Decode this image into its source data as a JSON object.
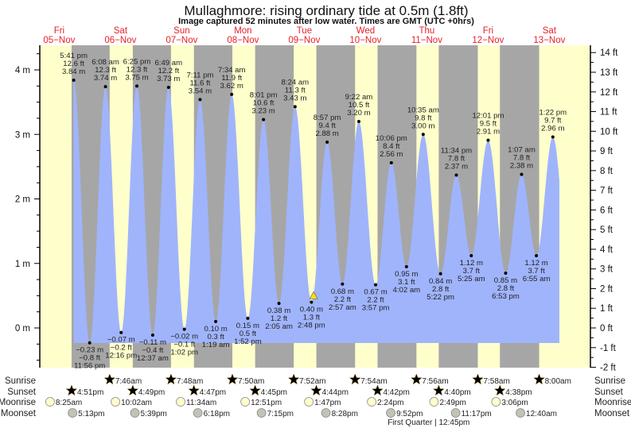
{
  "chart_data": {
    "type": "area",
    "title": "Mullaghmore: rising  ordinary tide at 0.5m (1.8ft)",
    "subtitle": "Image captured 52 minutes after low water. Times are GMT (UTC +0hrs)",
    "ylabel_left_unit": "m",
    "ylabel_right_unit": "ft",
    "ylim_m": [
      -0.615,
      4.38
    ],
    "left_ticks": [
      "0 m",
      "1 m",
      "2 m",
      "3 m",
      "4 m"
    ],
    "right_ticks": [
      "-2 ft",
      "-1 ft",
      "0 ft",
      "1 ft",
      "2 ft",
      "3 ft",
      "4 ft",
      "5 ft",
      "6 ft",
      "7 ft",
      "8 ft",
      "9 ft",
      "10 ft",
      "11 ft",
      "12 ft",
      "13 ft",
      "14 ft"
    ],
    "days": [
      {
        "dow": "Fri",
        "date": "05−Nov"
      },
      {
        "dow": "Sat",
        "date": "06−Nov"
      },
      {
        "dow": "Sun",
        "date": "07−Nov"
      },
      {
        "dow": "Mon",
        "date": "08−Nov"
      },
      {
        "dow": "Tue",
        "date": "09−Nov"
      },
      {
        "dow": "Wed",
        "date": "10−Nov"
      },
      {
        "dow": "Thu",
        "date": "11−Nov"
      },
      {
        "dow": "Fri",
        "date": "12−Nov"
      },
      {
        "dow": "Sat",
        "date": "13−Nov"
      }
    ],
    "current": {
      "hours_from_start": 111.67,
      "height_m": 0.5
    },
    "extremes": [
      {
        "t": 17.68,
        "type": "high",
        "time": "5:41 pm",
        "ft": "12.6 ft",
        "m": "3.84 m",
        "val": 3.84
      },
      {
        "t": 23.93,
        "type": "low",
        "time": "11:56 pm",
        "ft": "−0.8 ft",
        "m": "−0.23 m",
        "val": -0.23
      },
      {
        "t": 30.13,
        "type": "high",
        "time": "6:08 am",
        "ft": "12.3 ft",
        "m": "3.74 m",
        "val": 3.74
      },
      {
        "t": 36.27,
        "type": "low",
        "time": "12:16 pm",
        "ft": "−0.2 ft",
        "m": "−0.07 m",
        "val": -0.07
      },
      {
        "t": 42.42,
        "type": "high",
        "time": "6:25 pm",
        "ft": "12.3 ft",
        "m": "3.75 m",
        "val": 3.75
      },
      {
        "t": 48.62,
        "type": "low",
        "time": "12:37 am",
        "ft": "−0.4 ft",
        "m": "−0.11 m",
        "val": -0.11
      },
      {
        "t": 54.82,
        "type": "high",
        "time": "6:49 am",
        "ft": "12.2 ft",
        "m": "3.73 m",
        "val": 3.73
      },
      {
        "t": 61.03,
        "type": "low",
        "time": "1:02 pm",
        "ft": "−0.1 ft",
        "m": "−0.02 m",
        "val": -0.02
      },
      {
        "t": 67.18,
        "type": "high",
        "time": "7:11 pm",
        "ft": "11.6 ft",
        "m": "3.54 m",
        "val": 3.54
      },
      {
        "t": 73.32,
        "type": "low",
        "time": "1:19 am",
        "ft": "0.3 ft",
        "m": "0.10 m",
        "val": 0.1
      },
      {
        "t": 79.57,
        "type": "high",
        "time": "7:34 am",
        "ft": "11.9 ft",
        "m": "3.62 m",
        "val": 3.62
      },
      {
        "t": 85.87,
        "type": "low",
        "time": "1:52 pm",
        "ft": "0.5 ft",
        "m": "0.15 m",
        "val": 0.15
      },
      {
        "t": 92.02,
        "type": "high",
        "time": "8:01 pm",
        "ft": "10.6 ft",
        "m": "3.23 m",
        "val": 3.23
      },
      {
        "t": 98.08,
        "type": "low",
        "time": "2:05 am",
        "ft": "1.2 ft",
        "m": "0.38 m",
        "val": 0.38
      },
      {
        "t": 104.4,
        "type": "high",
        "time": "8:24 am",
        "ft": "11.3 ft",
        "m": "3.43 m",
        "val": 3.43
      },
      {
        "t": 110.8,
        "type": "low",
        "time": "2:48 pm",
        "ft": "1.3 ft",
        "m": "0.40 m",
        "val": 0.4
      },
      {
        "t": 116.95,
        "type": "high",
        "time": "8:57 pm",
        "ft": "9.4 ft",
        "m": "2.88 m",
        "val": 2.88
      },
      {
        "t": 122.95,
        "type": "low",
        "time": "2:57 am",
        "ft": "2.2 ft",
        "m": "0.68 m",
        "val": 0.68
      },
      {
        "t": 129.37,
        "type": "high",
        "time": "9:22 am",
        "ft": "10.5 ft",
        "m": "3.20 m",
        "val": 3.2
      },
      {
        "t": 135.95,
        "type": "low",
        "time": "3:57 pm",
        "ft": "2.2 ft",
        "m": "0.67 m",
        "val": 0.67
      },
      {
        "t": 142.1,
        "type": "high",
        "time": "10:06 pm",
        "ft": "8.4 ft",
        "m": "2.56 m",
        "val": 2.56
      },
      {
        "t": 148.03,
        "type": "low",
        "time": "4:02 am",
        "ft": "3.1 ft",
        "m": "0.95 m",
        "val": 0.95
      },
      {
        "t": 154.58,
        "type": "high",
        "time": "10:35 am",
        "ft": "9.8 ft",
        "m": "3.00 m",
        "val": 3.0
      },
      {
        "t": 161.37,
        "type": "low",
        "time": "5:22 pm",
        "ft": "2.8 ft",
        "m": "0.84 m",
        "val": 0.84
      },
      {
        "t": 167.57,
        "type": "high",
        "time": "11:34 pm",
        "ft": "7.8 ft",
        "m": "2.37 m",
        "val": 2.37
      },
      {
        "t": 173.42,
        "type": "low",
        "time": "5:25 am",
        "ft": "3.7 ft",
        "m": "1.12 m",
        "val": 1.12
      },
      {
        "t": 180.02,
        "type": "high",
        "time": "12:01 pm",
        "ft": "9.5 ft",
        "m": "2.91 m",
        "val": 2.91
      },
      {
        "t": 186.88,
        "type": "low",
        "time": "6:53 pm",
        "ft": "2.8 ft",
        "m": "0.85 m",
        "val": 0.85
      },
      {
        "t": 193.12,
        "type": "high",
        "time": "1:07 am",
        "ft": "7.8 ft",
        "m": "2.38 m",
        "val": 2.38
      },
      {
        "t": 198.92,
        "type": "low",
        "time": "6:55 am",
        "ft": "3.7 ft",
        "m": "1.12 m",
        "val": 1.12
      },
      {
        "t": 205.37,
        "type": "high",
        "time": "1:22 pm",
        "ft": "9.7 ft",
        "m": "2.96 m",
        "val": 2.96
      }
    ],
    "sunrise": [
      {
        "t": 31.77,
        "label": "7:46am"
      },
      {
        "t": 55.8,
        "label": "7:48am"
      },
      {
        "t": 79.83,
        "label": "7:50am"
      },
      {
        "t": 103.87,
        "label": "7:52am"
      },
      {
        "t": 127.9,
        "label": "7:54am"
      },
      {
        "t": 151.93,
        "label": "7:56am"
      },
      {
        "t": 175.97,
        "label": "7:58am"
      },
      {
        "t": 200.0,
        "label": "8:00am"
      }
    ],
    "sunset": [
      {
        "t": 16.85,
        "label": "4:51pm"
      },
      {
        "t": 40.82,
        "label": "4:49pm"
      },
      {
        "t": 64.78,
        "label": "4:47pm"
      },
      {
        "t": 88.75,
        "label": "4:45pm"
      },
      {
        "t": 112.73,
        "label": "4:44pm"
      },
      {
        "t": 136.7,
        "label": "4:42pm"
      },
      {
        "t": 160.67,
        "label": "4:40pm"
      },
      {
        "t": 184.63,
        "label": "4:38pm"
      }
    ],
    "moonrise": [
      {
        "t": 8.42,
        "label": "8:25am"
      },
      {
        "t": 34.03,
        "label": "10:02am"
      },
      {
        "t": 59.57,
        "label": "11:34am"
      },
      {
        "t": 84.85,
        "label": "12:51pm"
      },
      {
        "t": 109.78,
        "label": "1:47pm"
      },
      {
        "t": 134.4,
        "label": "2:24pm"
      },
      {
        "t": 158.82,
        "label": "2:49pm"
      },
      {
        "t": 183.1,
        "label": "3:06pm"
      }
    ],
    "moonset": [
      {
        "t": 17.22,
        "label": "5:13pm"
      },
      {
        "t": 41.65,
        "label": "5:39pm"
      },
      {
        "t": 66.3,
        "label": "6:18pm"
      },
      {
        "t": 91.25,
        "label": "7:15pm"
      },
      {
        "t": 116.47,
        "label": "8:28pm"
      },
      {
        "t": 141.87,
        "label": "9:52pm"
      },
      {
        "t": 167.28,
        "label": "11:17pm"
      },
      {
        "t": 192.67,
        "label": "12:40am"
      }
    ],
    "row_labels": {
      "sunrise": "Sunrise",
      "sunset": "Sunset",
      "moonrise": "Moonrise",
      "moonset": "Moonset"
    },
    "moon_phase": {
      "t": 156.75,
      "label": "First Quarter | 12:45pm"
    }
  },
  "colors": {
    "day": "#ffffcc",
    "night": "#a6a6a6",
    "water": "#a0b4fc",
    "sunrise_star": "#c09000",
    "sunset_star": "#a86a08",
    "moonrise": "#ffffcc",
    "moonset": "#c4c2b6",
    "day_label": "#e8202a"
  }
}
